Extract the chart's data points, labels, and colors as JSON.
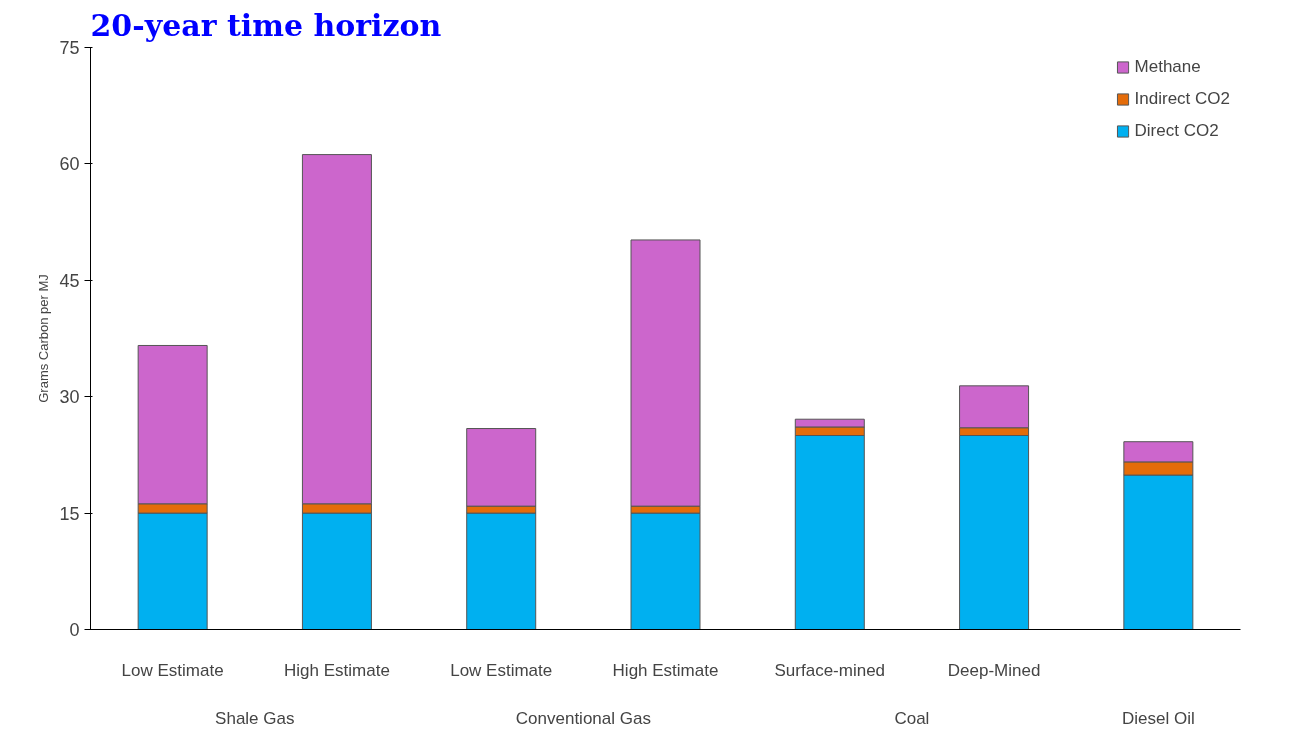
{
  "chart_data": {
    "type": "bar",
    "title": "20-year time horizon",
    "ylabel": "Grams Carbon per MJ",
    "categories": [
      "Low Estimate",
      "High Estimate",
      "Low Estimate",
      "High Estimate",
      "Surface-mined",
      "Deep-Mined",
      null
    ],
    "annotations": [
      "Shale Gas",
      "Conventional Gas",
      "Coal",
      "Diesel Oil"
    ],
    "stacked": true,
    "ylim": [
      0,
      75
    ],
    "yticks": [
      0,
      15,
      30,
      45,
      60,
      75
    ],
    "grid": false,
    "legend": "top right",
    "series": [
      {
        "name": "Direct CO2",
        "color": "#00b0f0",
        "values": [
          15,
          15,
          15,
          15,
          25,
          25,
          19.9
        ]
      },
      {
        "name": "Indirect CO2",
        "color": "#e46c0a",
        "values": [
          1.2,
          1.2,
          0.9,
          0.9,
          1.1,
          1,
          1.7
        ]
      },
      {
        "name": "Methane",
        "color": "#cc66cc",
        "values": [
          20.4,
          45,
          10,
          34.3,
          1,
          5.4,
          2.6
        ]
      }
    ]
  }
}
